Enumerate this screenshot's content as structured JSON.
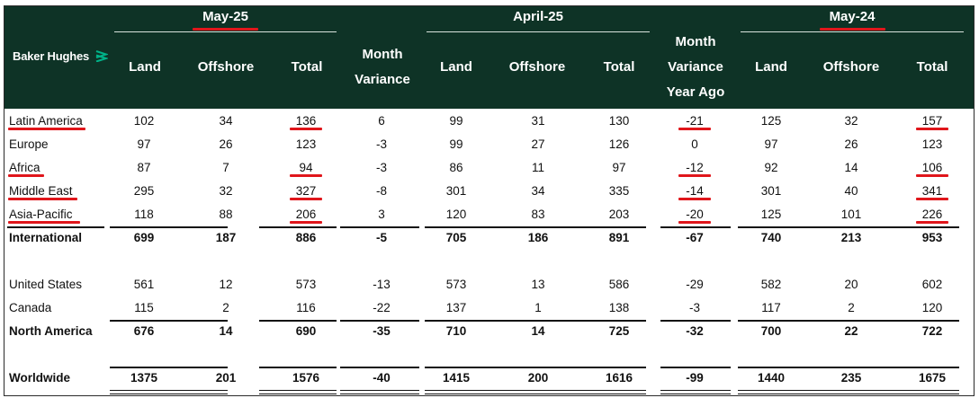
{
  "brand": {
    "name": "Baker Hughes",
    "accent": "#00b389"
  },
  "colors": {
    "header_bg": "#0e3326",
    "highlight": "#e0161b"
  },
  "groups": {
    "may25": "May-25",
    "apr25": "April-25",
    "may24": "May-24",
    "month_variance": [
      "Month",
      "Variance"
    ],
    "year_variance": [
      "Month",
      "Variance",
      "Year Ago"
    ]
  },
  "subheaders": {
    "land": "Land",
    "offshore": "Offshore",
    "total": "Total"
  },
  "rows": [
    {
      "label": "Latin America",
      "vals": [
        "102",
        "34",
        "136",
        "6",
        "99",
        "31",
        "130",
        "-21",
        "125",
        "32",
        "157"
      ]
    },
    {
      "label": "Europe",
      "vals": [
        "97",
        "26",
        "123",
        "-3",
        "99",
        "27",
        "126",
        "0",
        "97",
        "26",
        "123"
      ]
    },
    {
      "label": "Africa",
      "vals": [
        "87",
        "7",
        "94",
        "-3",
        "86",
        "11",
        "97",
        "-12",
        "92",
        "14",
        "106"
      ]
    },
    {
      "label": "Middle East",
      "vals": [
        "295",
        "32",
        "327",
        "-8",
        "301",
        "34",
        "335",
        "-14",
        "301",
        "40",
        "341"
      ]
    },
    {
      "label": "Asia-Pacific",
      "vals": [
        "118",
        "88",
        "206",
        "3",
        "120",
        "83",
        "203",
        "-20",
        "125",
        "101",
        "226"
      ]
    },
    {
      "label": "International",
      "vals": [
        "699",
        "187",
        "886",
        "-5",
        "705",
        "186",
        "891",
        "-67",
        "740",
        "213",
        "953"
      ]
    },
    {
      "label": "United States",
      "vals": [
        "561",
        "12",
        "573",
        "-13",
        "573",
        "13",
        "586",
        "-29",
        "582",
        "20",
        "602"
      ]
    },
    {
      "label": "Canada",
      "vals": [
        "115",
        "2",
        "116",
        "-22",
        "137",
        "1",
        "138",
        "-3",
        "117",
        "2",
        "120"
      ]
    },
    {
      "label": "North America",
      "vals": [
        "676",
        "14",
        "690",
        "-35",
        "710",
        "14",
        "725",
        "-32",
        "700",
        "22",
        "722"
      ]
    },
    {
      "label": "Worldwide",
      "vals": [
        "1375",
        "201",
        "1576",
        "-40",
        "1415",
        "200",
        "1616",
        "-99",
        "1440",
        "235",
        "1675"
      ]
    }
  ]
}
